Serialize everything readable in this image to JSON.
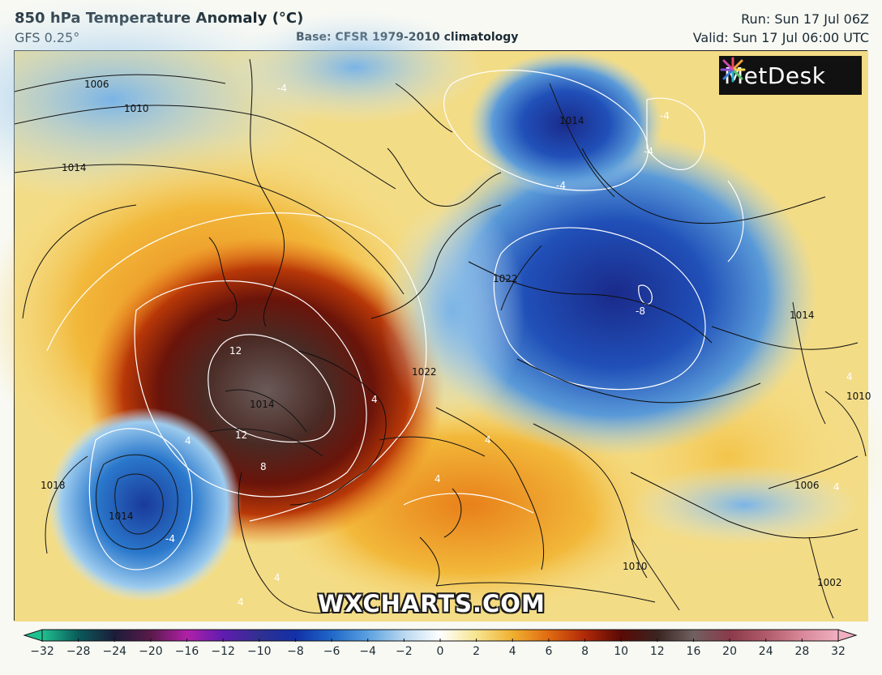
{
  "header": {
    "title": "850 hPa Temperature Anomaly (°C)",
    "model": "GFS 0.25°",
    "base": "Base: CFSR 1979-2010 climatology",
    "run": "Run: Sun 17 Jul 06Z",
    "valid": "Valid: Sun 17 Jul 06:00 UTC"
  },
  "logo": {
    "text": "MetDesk",
    "icon": "starburst-logo-icon"
  },
  "watermark": "WXCHARTS.COM",
  "map": {
    "region": "Europe",
    "isobar_labels": [
      "1006",
      "1010",
      "1014",
      "1014",
      "1014",
      "1018",
      "1014",
      "1022",
      "1022",
      "1010",
      "1006",
      "1010",
      "1014",
      "1002"
    ],
    "anomaly_labels": [
      "12",
      "12",
      "8",
      "4",
      "4",
      "4",
      "4",
      "4",
      "4",
      "-4",
      "-4",
      "-4",
      "-4",
      "-8",
      "-4",
      "4",
      "4"
    ]
  },
  "colorbar": {
    "tick_labels": [
      "−32",
      "−28",
      "−24",
      "−20",
      "−16",
      "−12",
      "−10",
      "−8",
      "−6",
      "−4",
      "−2",
      "0",
      "2",
      "4",
      "6",
      "8",
      "10",
      "12",
      "16",
      "20",
      "24",
      "28",
      "32"
    ],
    "colors": {
      "neg32": "#20c090",
      "neg28": "#0a5a5a",
      "neg24": "#1c1c3a",
      "neg20": "#5a1a4a",
      "neg16": "#b020a8",
      "neg12": "#601cb0",
      "neg10": "#303090",
      "neg8": "#1230a8",
      "neg6": "#1f68c8",
      "neg4": "#5aa0e0",
      "neg2": "#b8d8f0",
      "zero": "#ffffff",
      "pos2": "#f6e590",
      "pos4": "#f0b030",
      "pos6": "#e06a10",
      "pos8": "#b02808",
      "pos10": "#5a0a05",
      "pos12": "#3a2420",
      "pos16": "#706060",
      "pos20": "#8a3a4a",
      "pos24": "#b05a6a",
      "pos28": "#d88898",
      "pos32": "#f0b0c0"
    }
  }
}
